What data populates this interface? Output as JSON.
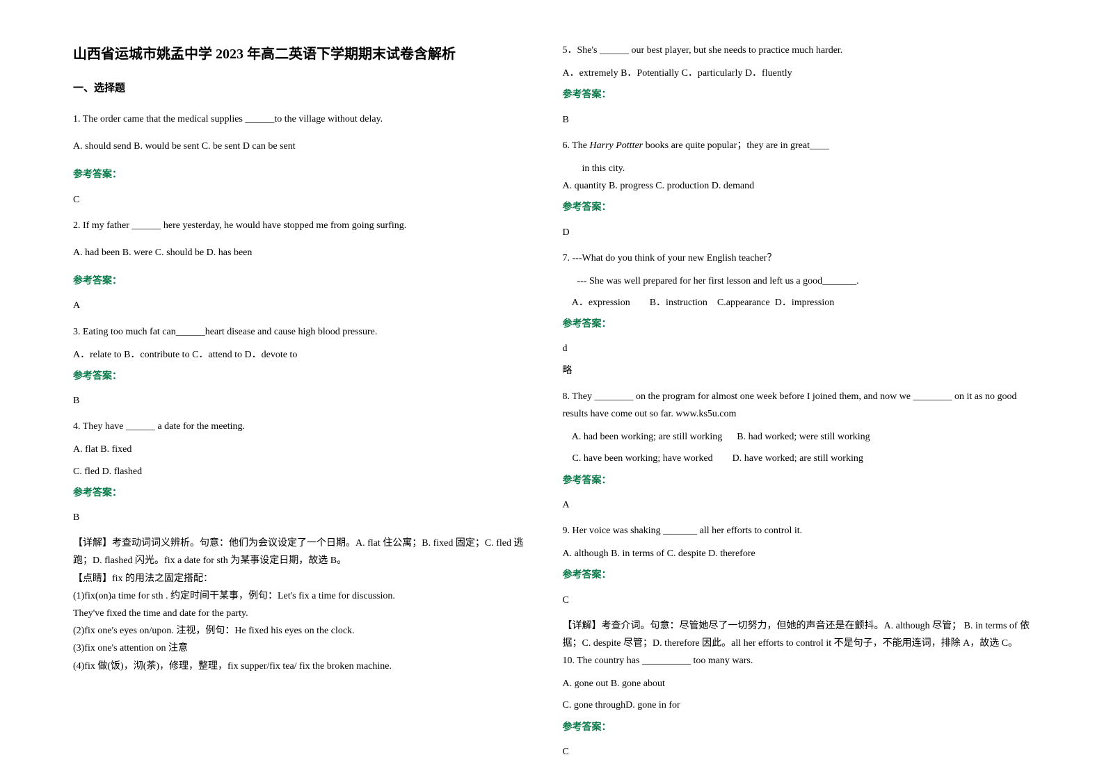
{
  "title": "山西省运城市姚孟中学 2023 年高二英语下学期期末试卷含解析",
  "section1_header": "一、选择题",
  "q1": {
    "text": "1. The order came that the medical supplies ______to the village without delay.",
    "options": "A. should send    B. would be sent    C. be sent    D can be sent",
    "answer_label": "参考答案：",
    "answer": "C"
  },
  "q2": {
    "text": "2. If my father ______ here yesterday, he would have stopped me from going surfing.",
    "options": "A. had been            B. were            C. should be        D. has been",
    "answer_label": "参考答案：",
    "answer": "A"
  },
  "q3": {
    "text": "3. Eating too much fat can______heart disease and cause high blood pressure.",
    "options": "A．relate to   B．contribute to   C．attend to     D．devote to",
    "answer_label": "参考答案：",
    "answer": "B"
  },
  "q4": {
    "text": "4. They have ______ a date for the meeting.",
    "optA": "A. flat   B. fixed",
    "optC": "C. fled   D. flashed",
    "answer_label": "参考答案：",
    "answer": "B",
    "exp1": "【详解】考查动词词义辨析。句意：他们为会议设定了一个日期。A. flat 住公寓；B. fixed 固定；C. fled 逃跑；D. flashed 闪光。fix a date for sth 为某事设定日期，故选 B。",
    "exp2": "【点睛】fix 的用法之固定搭配：",
    "exp3": "(1)fix(on)a time for sth . 约定时间干某事，例句：Let's fix a time for discussion.",
    "exp4": "They've fixed the time and date for the party.",
    "exp5": "(2)fix one's eyes on/upon. 注视，例句：He fixed his eyes on the clock.",
    "exp6": "(3)fix one's attention on 注意",
    "exp7": "(4)fix 做(饭)，沏(茶)，修理，整理，fix supper/fix tea/ fix the broken machine."
  },
  "q5": {
    "text": "5．She's ______ our best player, but she needs to practice much harder.",
    "options": "  A．extremely   B．Potentially    C．particularly    D．fluently",
    "answer_label": "参考答案：",
    "answer": "B"
  },
  "q6": {
    "text_pre": "6. The ",
    "text_italic": "Harry Pottter",
    "text_post": " books are quite popular；they are in great____",
    "text2": "        in this city.",
    "options": "  A. quantity    B. progress    C. production    D. demand",
    "answer_label": "参考答案：",
    "answer": "D"
  },
  "q7": {
    "text": "7. ---What do you think of your new English teacher？",
    "text2": "      --- She was well prepared for her first lesson and left us a good_______.",
    "options": "    A．expression        B．instruction    C.appearance  D．impression",
    "answer_label": "参考答案：",
    "answer": "d",
    "answer2": "略"
  },
  "q8": {
    "text": "8. They ________ on the program for almost one week before I joined them, and now we ________ on it as no good results have come out so far.  www.ks5u.com",
    "optA": "    A. had been working; are still working      B. had worked; were still working",
    "optC": "    C. have been working; have worked        D. have worked; are still working",
    "answer_label": "参考答案：",
    "answer": "A"
  },
  "q9": {
    "text": "9. Her voice was shaking _______ all her efforts to control it.",
    "options": "A. although      B. in terms of    C. despite        D. therefore",
    "answer_label": "参考答案：",
    "answer": "C",
    "exp1": "【详解】考查介词。句意：尽管她尽了一切努力，但她的声音还是在颤抖。A. although 尽管；          B. in terms of 依据；C. despite 尽管；D. therefore 因此。all her efforts to control it 不是句子，不能用连词，排除 A，故选 C。"
  },
  "q10": {
    "text": "10. The country has __________ too many wars.",
    "optA": "A. gone out      B. gone about",
    "optC": "C. gone throughD. gone in for",
    "answer_label": "参考答案：",
    "answer": "C"
  }
}
